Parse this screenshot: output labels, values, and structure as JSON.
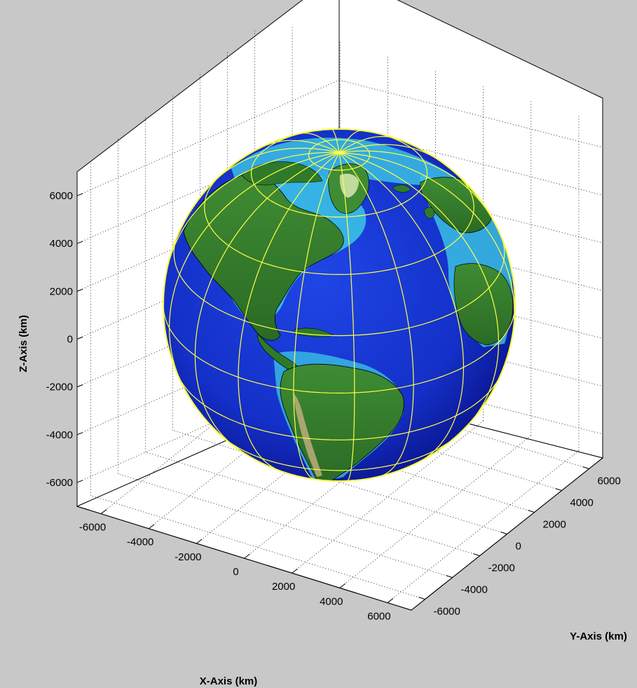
{
  "chart_data": {
    "type": "surface",
    "title": "",
    "xlabel": "X-Axis (km)",
    "ylabel": "Y-Axis (km)",
    "zlabel": "Z-Axis (km)",
    "xlim": [
      -7000,
      7000
    ],
    "ylim": [
      -7000,
      7000
    ],
    "zlim": [
      -7000,
      7000
    ],
    "xticks": [
      -6000,
      -4000,
      -2000,
      0,
      2000,
      4000,
      6000
    ],
    "yticks": [
      -6000,
      -4000,
      -2000,
      0,
      2000,
      4000,
      6000
    ],
    "zticks": [
      -6000,
      -4000,
      -2000,
      0,
      2000,
      4000,
      6000
    ],
    "grid": true,
    "sphere_radius_km": 6371,
    "graticule_step_deg": 20,
    "colors": {
      "background": "#c8c8c8",
      "axes_face": "#ffffff",
      "ocean_deep": "#0a1ea0",
      "ocean_shallow": "#3cc8e6",
      "land_low": "#2f7a2a",
      "land_high": "#cde0a0",
      "graticule": "#ffff40",
      "coastline": "#000000",
      "rivers": "#1e3cff"
    }
  }
}
